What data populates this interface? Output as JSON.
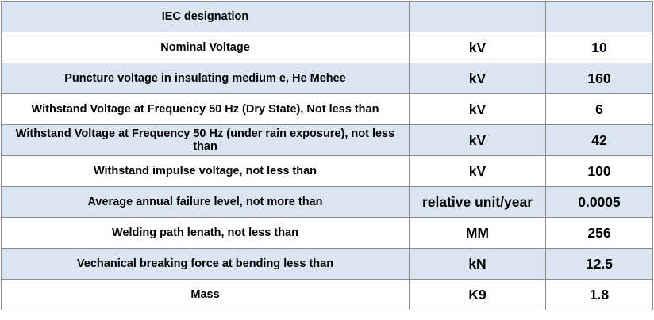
{
  "table": {
    "rows": [
      {
        "parameter": "IEC designation",
        "unit": "",
        "value": ""
      },
      {
        "parameter": "Nominal Voltage",
        "unit": "kV",
        "value": "10"
      },
      {
        "parameter": "Puncture voltage in insulating medium e, He Mehee",
        "unit": "kV",
        "value": "160"
      },
      {
        "parameter": "Withstand Voltage at Frequency 50 Hz (Dry State), Not less than",
        "unit": "kV",
        "value": "6"
      },
      {
        "parameter": "Withstand Voltage at Frequency 50 Hz (under rain exposure), not less than",
        "unit": "kV",
        "value": "42"
      },
      {
        "parameter": "Withstand impulse voltage, not less than",
        "unit": "kV",
        "value": "100"
      },
      {
        "parameter": "Average annual failure level, not more than",
        "unit": "relative unit/year",
        "value": "0.0005"
      },
      {
        "parameter": "Welding path lenath, not less than",
        "unit": "MM",
        "value": "256"
      },
      {
        "parameter": "Vechanical breaking force at bending less than",
        "unit": "kN",
        "value": "12.5"
      },
      {
        "parameter": "Mass",
        "unit": "K9",
        "value": "1.8"
      }
    ]
  },
  "colors": {
    "shaded_row": "#dbe5f1",
    "plain_row": "#ffffff",
    "border": "#8c8c8c"
  }
}
